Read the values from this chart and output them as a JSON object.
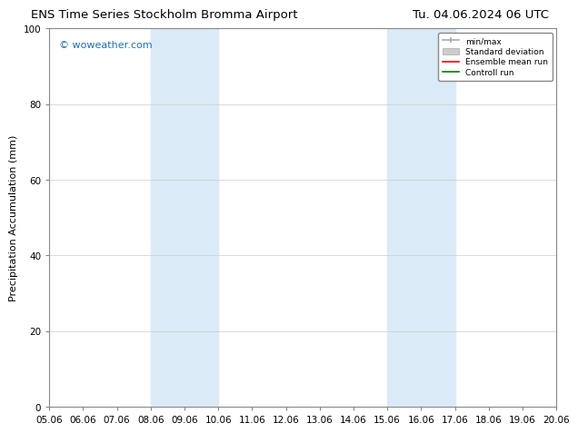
{
  "title_left": "ENS Time Series Stockholm Bromma Airport",
  "title_right": "Tu. 04.06.2024 06 UTC",
  "ylabel": "Precipitation Accumulation (mm)",
  "ylim": [
    0,
    100
  ],
  "yticks": [
    0,
    20,
    40,
    60,
    80,
    100
  ],
  "xtick_labels": [
    "05.06",
    "06.06",
    "07.06",
    "08.06",
    "09.06",
    "10.06",
    "11.06",
    "12.06",
    "13.06",
    "14.06",
    "15.06",
    "16.06",
    "17.06",
    "18.06",
    "19.06",
    "20.06"
  ],
  "shade_bands": [
    {
      "xmin": 3,
      "xmax": 5,
      "color": "#daeaf7"
    },
    {
      "xmin": 10,
      "xmax": 12,
      "color": "#daeaf7"
    }
  ],
  "watermark": "© woweather.com",
  "watermark_color": "#1a6ec2",
  "background_color": "#ffffff",
  "plot_bg_color": "#ffffff",
  "title_fontsize": 9.5,
  "axis_fontsize": 8,
  "tick_fontsize": 7.5,
  "ylabel_fontsize": 8
}
